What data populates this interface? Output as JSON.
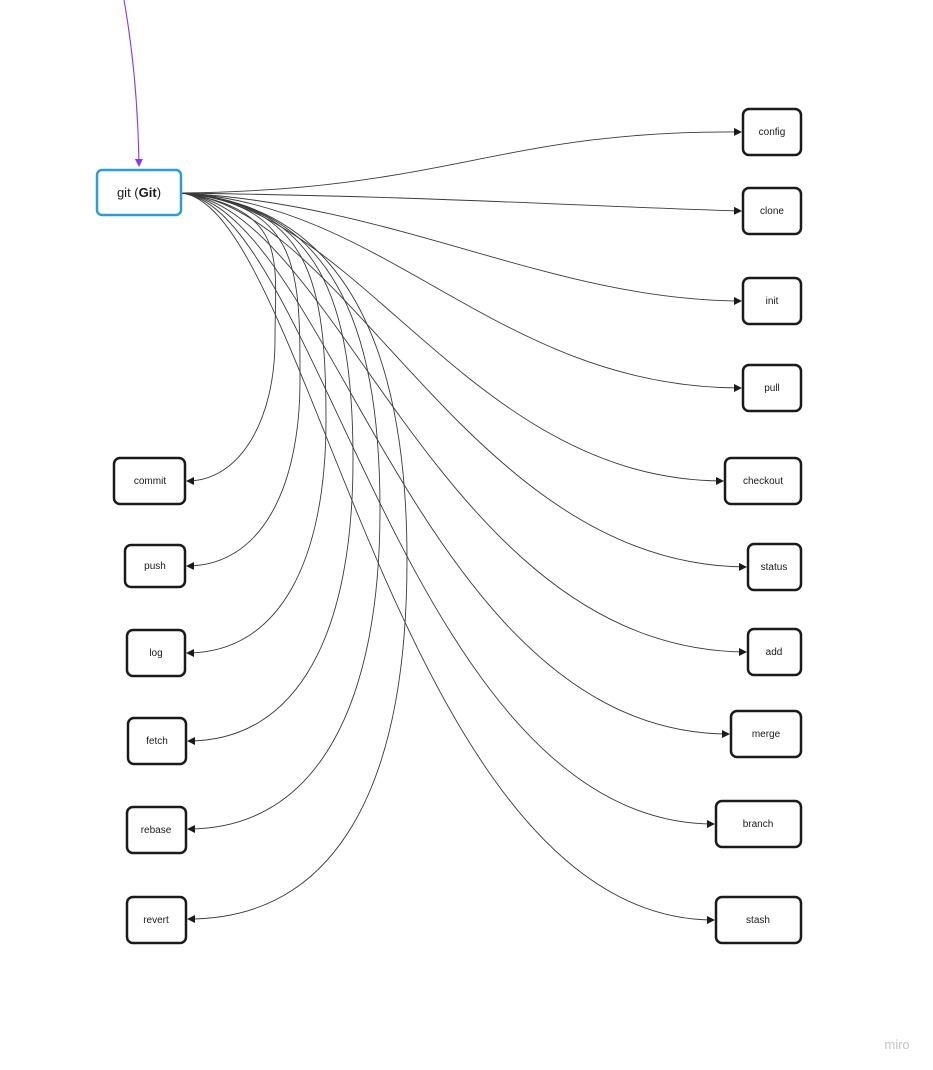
{
  "root": {
    "label_prefix": "git (",
    "label_bold": "Git",
    "label_suffix": ")"
  },
  "nodes": {
    "config": "config",
    "clone": "clone",
    "init": "init",
    "pull": "pull",
    "checkout": "checkout",
    "status": "status",
    "add": "add",
    "merge": "merge",
    "branch": "branch",
    "stash": "stash",
    "commit": "commit",
    "push": "push",
    "log": "log",
    "fetch": "fetch",
    "rebase": "rebase",
    "revert": "revert"
  },
  "colors": {
    "root_border": "#2d9be0",
    "node_border": "#1a1a1a",
    "edge": "#3a3a3a",
    "incoming_edge": "#8a3ae0",
    "watermark": "#c4c4c4"
  },
  "watermark": "miro"
}
